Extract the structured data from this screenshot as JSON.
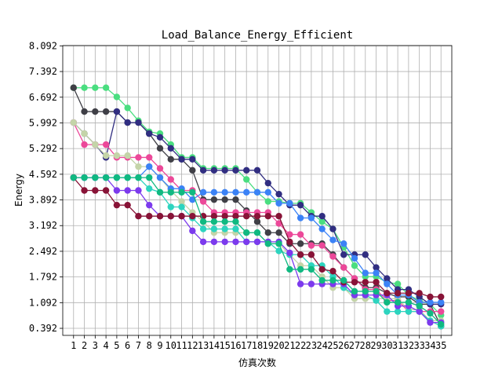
{
  "chart_data": {
    "type": "line",
    "title": "Load_Balance_Energy_Efficient",
    "xlabel": "仿真次数",
    "ylabel": "Energy",
    "x": [
      1,
      2,
      3,
      4,
      5,
      6,
      7,
      8,
      9,
      10,
      11,
      12,
      13,
      14,
      15,
      16,
      17,
      18,
      19,
      20,
      21,
      22,
      23,
      24,
      25,
      26,
      27,
      28,
      29,
      30,
      31,
      32,
      33,
      34,
      35
    ],
    "xlim": [
      0,
      36
    ],
    "ylim": [
      0.2,
      8.1
    ],
    "yticks": [
      "0.392",
      "1.092",
      "1.792",
      "2.492",
      "3.192",
      "3.892",
      "4.592",
      "5.292",
      "5.992",
      "6.692",
      "7.392",
      "8.092"
    ],
    "grid": true,
    "marker": "circle",
    "series": [
      {
        "color": "#4ade80",
        "values": [
          6.95,
          6.95,
          6.95,
          6.95,
          6.7,
          6.4,
          6.05,
          5.75,
          5.7,
          5.4,
          5.05,
          5.05,
          4.75,
          4.75,
          4.75,
          4.75,
          4.45,
          4.1,
          3.85,
          3.85,
          3.8,
          3.8,
          3.55,
          3.3,
          3.1,
          2.6,
          2.1,
          1.8,
          1.8,
          1.65,
          1.6,
          1.3,
          1.15,
          1.05,
          0.75
        ]
      },
      {
        "color": "#3f3f46",
        "values": [
          6.95,
          6.3,
          6.3,
          6.3,
          6.3,
          6.0,
          6.0,
          5.7,
          5.3,
          5.0,
          5.0,
          4.7,
          3.9,
          3.9,
          3.9,
          3.9,
          3.6,
          3.3,
          3.0,
          3.0,
          2.7,
          2.7,
          2.7,
          2.7,
          2.4,
          2.05,
          1.75,
          1.5,
          1.5,
          1.35,
          1.25,
          1.25,
          1.05,
          1.05,
          0.45
        ]
      },
      {
        "color": "#312e81",
        "values": [
          6.0,
          5.7,
          5.4,
          5.05,
          6.3,
          6.0,
          6.0,
          5.7,
          5.6,
          5.3,
          5.0,
          5.0,
          4.7,
          4.7,
          4.7,
          4.7,
          4.7,
          4.7,
          4.35,
          4.05,
          3.75,
          3.75,
          3.45,
          3.45,
          3.1,
          2.4,
          2.4,
          2.4,
          2.05,
          1.75,
          1.45,
          1.45,
          1.25,
          1.05,
          1.05
        ]
      },
      {
        "color": "#ec4899",
        "values": [
          6.0,
          5.4,
          5.4,
          5.4,
          5.05,
          5.05,
          5.05,
          5.05,
          4.75,
          4.45,
          4.15,
          4.15,
          3.85,
          3.55,
          3.55,
          3.55,
          3.55,
          3.55,
          3.55,
          3.25,
          2.95,
          2.95,
          2.65,
          2.65,
          2.35,
          2.05,
          1.75,
          1.45,
          1.45,
          1.15,
          1.15,
          0.85,
          0.85,
          0.85,
          0.85
        ]
      },
      {
        "color": "#c4d4a8",
        "values": [
          6.0,
          5.7,
          5.4,
          5.1,
          5.1,
          5.1,
          4.8,
          4.8,
          4.5,
          4.15,
          3.85,
          3.55,
          3.3,
          3.0,
          3.0,
          3.0,
          3.0,
          3.0,
          2.7,
          2.7,
          2.4,
          2.1,
          2.1,
          1.8,
          1.5,
          1.5,
          1.2,
          1.2,
          1.2,
          1.2,
          1.2,
          0.9,
          0.9,
          0.6,
          0.6
        ]
      },
      {
        "color": "#3b82f6",
        "values": [
          4.5,
          4.5,
          4.5,
          4.5,
          4.5,
          4.5,
          4.5,
          4.8,
          4.5,
          4.2,
          4.2,
          3.9,
          4.1,
          4.1,
          4.1,
          4.1,
          4.1,
          4.1,
          4.1,
          3.8,
          3.8,
          3.4,
          3.4,
          3.1,
          2.8,
          2.7,
          2.3,
          1.9,
          1.9,
          1.6,
          1.3,
          1.3,
          1.1,
          1.1,
          1.1
        ]
      },
      {
        "color": "#2dd4bf",
        "values": [
          4.5,
          4.5,
          4.5,
          4.5,
          4.5,
          4.5,
          4.5,
          4.2,
          4.1,
          3.7,
          3.7,
          3.4,
          3.1,
          3.1,
          3.1,
          3.1,
          2.75,
          2.75,
          2.75,
          2.5,
          2.4,
          2.4,
          2.1,
          2.1,
          1.8,
          1.5,
          1.3,
          1.3,
          1.15,
          0.85,
          0.85,
          0.85,
          0.85,
          0.6,
          0.45
        ]
      },
      {
        "color": "#7c3aed",
        "values": [
          4.5,
          4.5,
          4.5,
          4.5,
          4.15,
          4.15,
          4.15,
          3.75,
          3.45,
          3.45,
          3.45,
          3.05,
          2.75,
          2.75,
          2.75,
          2.75,
          2.75,
          2.75,
          2.75,
          2.75,
          2.45,
          1.6,
          1.6,
          1.6,
          1.6,
          1.6,
          1.3,
          1.3,
          1.3,
          1.3,
          1.0,
          1.0,
          0.85,
          0.55,
          0.55
        ]
      },
      {
        "color": "#881337",
        "values": [
          4.5,
          4.15,
          4.15,
          4.15,
          3.75,
          3.75,
          3.45,
          3.45,
          3.45,
          3.45,
          3.45,
          3.45,
          3.45,
          3.45,
          3.45,
          3.45,
          3.45,
          3.45,
          3.45,
          3.45,
          2.75,
          2.4,
          2.4,
          2.0,
          1.95,
          1.65,
          1.65,
          1.65,
          1.65,
          1.35,
          1.35,
          1.35,
          1.35,
          1.25,
          1.25
        ]
      },
      {
        "color": "#10b981",
        "values": [
          4.5,
          4.5,
          4.5,
          4.5,
          4.5,
          4.5,
          4.5,
          4.5,
          4.1,
          4.1,
          4.1,
          4.1,
          3.3,
          3.3,
          3.3,
          3.3,
          3.0,
          3.0,
          2.7,
          2.7,
          2.0,
          2.0,
          2.0,
          1.7,
          1.7,
          1.7,
          1.4,
          1.4,
          1.4,
          1.1,
          1.1,
          1.1,
          1.0,
          0.8,
          0.5
        ]
      }
    ]
  }
}
